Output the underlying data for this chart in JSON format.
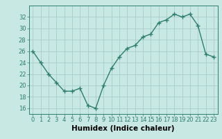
{
  "x": [
    0,
    1,
    2,
    3,
    4,
    5,
    6,
    7,
    8,
    9,
    10,
    11,
    12,
    13,
    14,
    15,
    16,
    17,
    18,
    19,
    20,
    21,
    22,
    23
  ],
  "y": [
    26,
    24,
    22,
    20.5,
    19,
    19,
    19.5,
    16.5,
    16,
    20,
    23,
    25,
    26.5,
    27,
    28.5,
    29,
    31,
    31.5,
    32.5,
    32,
    32.5,
    30.5,
    25.5,
    25
  ],
  "line_color": "#2e7d6e",
  "bg_color": "#c8e8e4",
  "grid_color": "#a8ccc8",
  "xlabel": "Humidex (Indice chaleur)",
  "xlim": [
    -0.5,
    23.5
  ],
  "ylim": [
    15,
    34
  ],
  "yticks": [
    16,
    18,
    20,
    22,
    24,
    26,
    28,
    30,
    32
  ],
  "xticks": [
    0,
    1,
    2,
    3,
    4,
    5,
    6,
    7,
    8,
    9,
    10,
    11,
    12,
    13,
    14,
    15,
    16,
    17,
    18,
    19,
    20,
    21,
    22,
    23
  ],
  "marker": "+",
  "marker_size": 4,
  "line_width": 1.0,
  "xlabel_fontsize": 7.5,
  "tick_fontsize": 6.0
}
